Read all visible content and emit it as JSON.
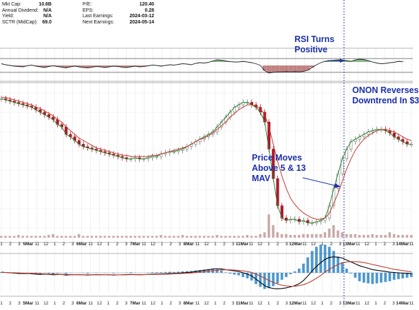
{
  "stats": {
    "left": [
      {
        "label": "Mkt Cap:",
        "value": "10.6B"
      },
      {
        "label": "Annual Dividend:",
        "value": "N/A"
      },
      {
        "label": "Yield:",
        "value": "N/A"
      },
      {
        "label": "SCTR (MidCap):",
        "value": "69.0"
      }
    ],
    "right": [
      {
        "label": "P/E:",
        "value": "120.40"
      },
      {
        "label": "EPS:",
        "value": "0.28"
      },
      {
        "label": "Last Earnings:",
        "value": "2024-03-12"
      },
      {
        "label": "Next Earnings:",
        "value": "2024-05-14"
      }
    ]
  },
  "annotations": {
    "rsi": "RSI Turns\nPositive",
    "price": "Price Moves\nAbove 5 & 13\nMAV",
    "reversal": "ONON Reverses\nDowntrend In $3"
  },
  "colors": {
    "price_up": "#7a7a7a",
    "price_down": "#b0182c",
    "ma5": "#1f8a2a",
    "ma13": "#c0392b",
    "volume": "#c9a9a9",
    "macd": "#000000",
    "signal": "#c0392b",
    "histogram": "#2f86c7",
    "rsi_fill_up": "#2e7d32",
    "rsi_fill_down": "#8e1f1f",
    "annotation": "#1b2fa8",
    "marker": "#1b2fa8"
  },
  "chart_data": {
    "type": "line",
    "x_tick_labels": [
      "1",
      "2",
      "3",
      "5Mar",
      "11",
      "12",
      "1",
      "2",
      "3",
      "6Mar",
      "11",
      "12",
      "1",
      "2",
      "3",
      "7Mar",
      "11",
      "12",
      "1",
      "2",
      "3",
      "8Mar",
      "11",
      "12",
      "1",
      "2",
      "3",
      "11Mar",
      "11",
      "12",
      "1",
      "2",
      "3",
      "12Mar",
      "11",
      "12",
      "1",
      "2",
      "3",
      "13Mar",
      "11",
      "12",
      "1",
      "2",
      "3",
      "14Mar",
      "11"
    ],
    "price": {
      "series": [
        {
          "name": "",
          "values": [
            148.5,
            148,
            147.5,
            147,
            146.5,
            146,
            145.5,
            145,
            144,
            143,
            142,
            141,
            140,
            138,
            137,
            134,
            133,
            131.5,
            130,
            129,
            128.5,
            128,
            127.5,
            127,
            126.5,
            126,
            125.5,
            125,
            124.5,
            124,
            124,
            124.5,
            124,
            124,
            124.5,
            125,
            125,
            126,
            126.5,
            127,
            127,
            127.5,
            128,
            129,
            130,
            131,
            132,
            133,
            134,
            135,
            137,
            139,
            141,
            143,
            145,
            146,
            147,
            147,
            146,
            145,
            143,
            139,
            128,
            116,
            105,
            100,
            99,
            99.5,
            99.5,
            98.5,
            99,
            98,
            98,
            98.5,
            99,
            100,
            105,
            112,
            118,
            124,
            128,
            131,
            132,
            133,
            134,
            135,
            135.5,
            136,
            136,
            135.5,
            134.5,
            133,
            132,
            131,
            130,
            130
          ]
        },
        {
          "name": "",
          "values": [
            149,
            149,
            148.5,
            148,
            147.5,
            147,
            146.5,
            146,
            145,
            144.5,
            143.5,
            142.5,
            141.5,
            140,
            139,
            137,
            135.5,
            134,
            132.5,
            131.5,
            130.5,
            129.5,
            128.5,
            128,
            127.5,
            127,
            126.5,
            126,
            125.5,
            125.5,
            125,
            125,
            125,
            125,
            125,
            125.5,
            125.5,
            126,
            126.5,
            127,
            127.5,
            128,
            128.5,
            129,
            130,
            131,
            132,
            132.5,
            133.5,
            134.5,
            136,
            137.5,
            139,
            141,
            142.5,
            144,
            145,
            146,
            146,
            145.5,
            144.5,
            142,
            137,
            130,
            123,
            117,
            112,
            108,
            105.5,
            103.5,
            102,
            101,
            100,
            99.5,
            99.5,
            100,
            102,
            106,
            110,
            115,
            120,
            124,
            127.5,
            130,
            132,
            133.5,
            134.5,
            135.5,
            136,
            136,
            135.5,
            135,
            134,
            133,
            132,
            131.5
          ]
        }
      ],
      "candle_color_pattern": "mixed red and grey candles"
    },
    "rsi": {
      "values": [
        55,
        52,
        50,
        48,
        47,
        46,
        49,
        51,
        48,
        46,
        44,
        47,
        49,
        47,
        45,
        43,
        46,
        48,
        46,
        44,
        43,
        45,
        47,
        46,
        44,
        46,
        48,
        47,
        45,
        44,
        46,
        48,
        46,
        47,
        49,
        51,
        50,
        48,
        50,
        52,
        51,
        53,
        55,
        54,
        52,
        56,
        58,
        57,
        59,
        63,
        66,
        65,
        63,
        61,
        60,
        60,
        62,
        60,
        58,
        55,
        50,
        35,
        28,
        30,
        31,
        31.5,
        32,
        31.5,
        32,
        31.5,
        33,
        36,
        44,
        52,
        58,
        62,
        64,
        65,
        66,
        66,
        64,
        62,
        66,
        68,
        67,
        64,
        60,
        57,
        55,
        56,
        58,
        59,
        62,
        61
      ]
    },
    "volume": {
      "values": [
        1,
        1,
        1,
        1,
        1.5,
        1,
        1,
        1,
        1,
        1,
        1,
        1.5,
        2,
        1,
        1,
        1,
        1,
        1,
        2,
        1,
        1,
        1,
        1,
        1,
        1,
        1,
        1,
        1,
        1,
        1,
        1,
        1,
        1,
        1,
        1,
        1,
        1,
        1.5,
        1,
        1,
        1,
        1,
        1.5,
        1,
        1,
        1,
        1,
        1,
        1,
        1,
        1.5,
        1,
        1,
        1,
        1,
        1,
        1,
        1.5,
        1,
        1,
        2,
        3,
        13,
        7,
        3,
        2,
        2,
        1.5,
        1.5,
        1.5,
        2,
        2,
        2,
        2,
        2,
        3,
        5,
        7,
        4,
        3,
        2,
        2,
        2,
        1.5,
        1.5,
        1.5,
        2,
        1.5,
        1.5,
        1.5,
        3,
        2,
        1.5,
        1.5,
        1.5,
        1.5
      ]
    },
    "macd": {
      "series": [
        {
          "name": "",
          "values": [
            0.1,
            0.05,
            0,
            -0.05,
            -0.1,
            -0.12,
            -0.1,
            -0.15,
            -0.2,
            -0.25,
            -0.2,
            -0.25,
            -0.3,
            -0.28,
            -0.25,
            -0.35,
            -0.3,
            -0.28,
            -0.3,
            -0.32,
            -0.35,
            -0.3,
            -0.28,
            -0.3,
            -0.32,
            -0.3,
            -0.35,
            -0.32,
            -0.3,
            -0.28,
            -0.25,
            -0.28,
            -0.3,
            -0.28,
            -0.25,
            -0.22,
            -0.2,
            -0.18,
            -0.15,
            -0.12,
            -0.1,
            -0.05,
            0,
            0.05,
            0.1,
            0.2,
            0.3,
            0.4,
            0.5,
            0.6,
            0.65,
            0.6,
            0.5,
            0.4,
            0.3,
            0.2,
            0,
            -0.2,
            -0.5,
            -1,
            -1.5,
            -2,
            -2.3,
            -2.45,
            -2.5,
            -2.45,
            -2.35,
            -2.2,
            -2,
            -1.7,
            -1.2,
            -0.5,
            0.3,
            1,
            1.6,
            2.1,
            2.4,
            2.5,
            2.45,
            2.3,
            2,
            1.7,
            1.4,
            1.1,
            0.9,
            0.7,
            0.5,
            0.4,
            0.3,
            0.2,
            0.1,
            0.05,
            0,
            -0.05,
            -0.1,
            -0.15
          ]
        },
        {
          "name": "",
          "values": [
            0.05,
            0.05,
            0.02,
            0,
            -0.02,
            -0.05,
            -0.08,
            -0.1,
            -0.12,
            -0.15,
            -0.18,
            -0.2,
            -0.22,
            -0.24,
            -0.25,
            -0.27,
            -0.28,
            -0.28,
            -0.29,
            -0.3,
            -0.3,
            -0.3,
            -0.3,
            -0.3,
            -0.3,
            -0.3,
            -0.31,
            -0.31,
            -0.31,
            -0.3,
            -0.29,
            -0.29,
            -0.29,
            -0.28,
            -0.27,
            -0.26,
            -0.25,
            -0.23,
            -0.21,
            -0.19,
            -0.16,
            -0.13,
            -0.1,
            -0.07,
            -0.03,
            0.03,
            0.1,
            0.17,
            0.25,
            0.33,
            0.4,
            0.45,
            0.47,
            0.46,
            0.43,
            0.38,
            0.3,
            0.2,
            0.05,
            -0.2,
            -0.5,
            -0.85,
            -1.2,
            -1.5,
            -1.75,
            -1.95,
            -2.05,
            -2.1,
            -2.1,
            -2,
            -1.85,
            -1.6,
            -1.25,
            -0.85,
            -0.4,
            0.1,
            0.55,
            0.95,
            1.3,
            1.55,
            1.7,
            1.75,
            1.75,
            1.7,
            1.6,
            1.45,
            1.3,
            1.15,
            1,
            0.85,
            0.7,
            0.55,
            0.45,
            0.35,
            0.25,
            0.15
          ]
        }
      ]
    }
  }
}
